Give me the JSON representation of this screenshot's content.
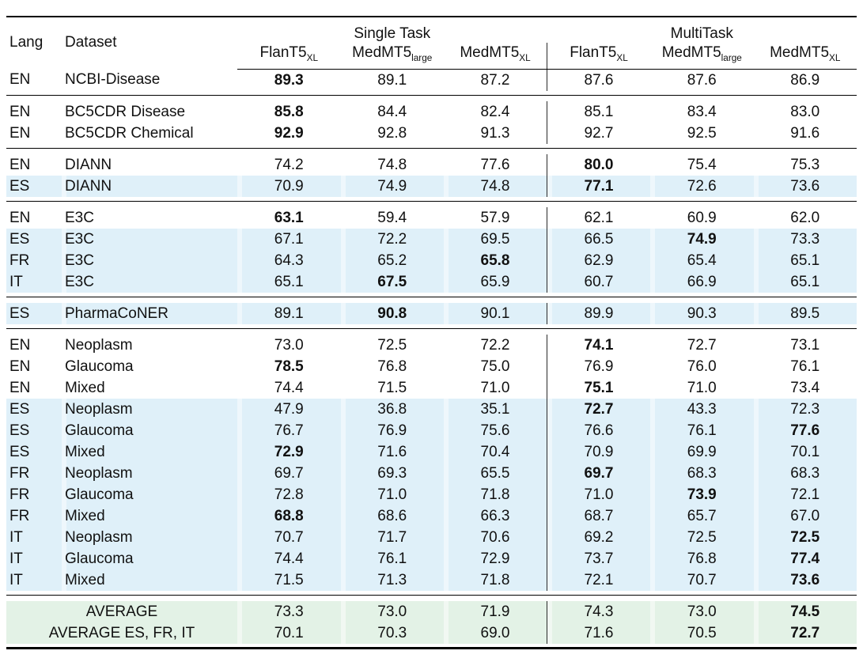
{
  "table": {
    "header": {
      "lang": "Lang",
      "dataset": "Dataset",
      "groups": [
        {
          "label": "Single Task",
          "models": [
            {
              "name": "FlanT5",
              "sub": "XL"
            },
            {
              "name": "MedMT5",
              "sub": "large"
            },
            {
              "name": "MedMT5",
              "sub": "XL"
            }
          ]
        },
        {
          "label": "MultiTask",
          "models": [
            {
              "name": "FlanT5",
              "sub": "XL"
            },
            {
              "name": "MedMT5",
              "sub": "large"
            },
            {
              "name": "MedMT5",
              "sub": "XL"
            }
          ]
        }
      ]
    },
    "groups": [
      {
        "rows": [
          {
            "lang": "EN",
            "dataset": "NCBI-Disease",
            "shaded": false,
            "values": [
              "89.3",
              "89.1",
              "87.2",
              "87.6",
              "87.6",
              "86.9"
            ],
            "bold": [
              0
            ]
          }
        ]
      },
      {
        "rows": [
          {
            "lang": "EN",
            "dataset": "BC5CDR Disease",
            "shaded": false,
            "values": [
              "85.8",
              "84.4",
              "82.4",
              "85.1",
              "83.4",
              "83.0"
            ],
            "bold": [
              0
            ]
          },
          {
            "lang": "EN",
            "dataset": "BC5CDR Chemical",
            "shaded": false,
            "values": [
              "92.9",
              "92.8",
              "91.3",
              "92.7",
              "92.5",
              "91.6"
            ],
            "bold": [
              0
            ]
          }
        ]
      },
      {
        "rows": [
          {
            "lang": "EN",
            "dataset": "DIANN",
            "shaded": false,
            "values": [
              "74.2",
              "74.8",
              "77.6",
              "80.0",
              "75.4",
              "75.3"
            ],
            "bold": [
              3
            ]
          },
          {
            "lang": "ES",
            "dataset": "DIANN",
            "shaded": true,
            "values": [
              "70.9",
              "74.9",
              "74.8",
              "77.1",
              "72.6",
              "73.6"
            ],
            "bold": [
              3
            ]
          }
        ]
      },
      {
        "rows": [
          {
            "lang": "EN",
            "dataset": "E3C",
            "shaded": false,
            "values": [
              "63.1",
              "59.4",
              "57.9",
              "62.1",
              "60.9",
              "62.0"
            ],
            "bold": [
              0
            ]
          },
          {
            "lang": "ES",
            "dataset": "E3C",
            "shaded": true,
            "values": [
              "67.1",
              "72.2",
              "69.5",
              "66.5",
              "74.9",
              "73.3"
            ],
            "bold": [
              4
            ]
          },
          {
            "lang": "FR",
            "dataset": "E3C",
            "shaded": true,
            "values": [
              "64.3",
              "65.2",
              "65.8",
              "62.9",
              "65.4",
              "65.1"
            ],
            "bold": [
              2
            ]
          },
          {
            "lang": "IT",
            "dataset": "E3C",
            "shaded": true,
            "values": [
              "65.1",
              "67.5",
              "65.9",
              "60.7",
              "66.9",
              "65.1"
            ],
            "bold": [
              1
            ]
          }
        ]
      },
      {
        "rows": [
          {
            "lang": "ES",
            "dataset": "PharmaCoNER",
            "shaded": true,
            "values": [
              "89.1",
              "90.8",
              "90.1",
              "89.9",
              "90.3",
              "89.5"
            ],
            "bold": [
              1
            ]
          }
        ]
      },
      {
        "rows": [
          {
            "lang": "EN",
            "dataset": "Neoplasm",
            "shaded": false,
            "values": [
              "73.0",
              "72.5",
              "72.2",
              "74.1",
              "72.7",
              "73.1"
            ],
            "bold": [
              3
            ]
          },
          {
            "lang": "EN",
            "dataset": "Glaucoma",
            "shaded": false,
            "values": [
              "78.5",
              "76.8",
              "75.0",
              "76.9",
              "76.0",
              "76.1"
            ],
            "bold": [
              0
            ]
          },
          {
            "lang": "EN",
            "dataset": "Mixed",
            "shaded": false,
            "values": [
              "74.4",
              "71.5",
              "71.0",
              "75.1",
              "71.0",
              "73.4"
            ],
            "bold": [
              3
            ]
          },
          {
            "lang": "ES",
            "dataset": "Neoplasm",
            "shaded": true,
            "values": [
              "47.9",
              "36.8",
              "35.1",
              "72.7",
              "43.3",
              "72.3"
            ],
            "bold": [
              3
            ]
          },
          {
            "lang": "ES",
            "dataset": "Glaucoma",
            "shaded": true,
            "values": [
              "76.7",
              "76.9",
              "75.6",
              "76.6",
              "76.1",
              "77.6"
            ],
            "bold": [
              5
            ]
          },
          {
            "lang": "ES",
            "dataset": "Mixed",
            "shaded": true,
            "values": [
              "72.9",
              "71.6",
              "70.4",
              "70.9",
              "69.9",
              "70.1"
            ],
            "bold": [
              0
            ]
          },
          {
            "lang": "FR",
            "dataset": "Neoplasm",
            "shaded": true,
            "values": [
              "69.7",
              "69.3",
              "65.5",
              "69.7",
              "68.3",
              "68.3"
            ],
            "bold": [
              3
            ]
          },
          {
            "lang": "FR",
            "dataset": "Glaucoma",
            "shaded": true,
            "values": [
              "72.8",
              "71.0",
              "71.8",
              "71.0",
              "73.9",
              "72.1"
            ],
            "bold": [
              4
            ]
          },
          {
            "lang": "FR",
            "dataset": "Mixed",
            "shaded": true,
            "values": [
              "68.8",
              "68.6",
              "66.3",
              "68.7",
              "65.7",
              "67.0"
            ],
            "bold": [
              0
            ]
          },
          {
            "lang": "IT",
            "dataset": "Neoplasm",
            "shaded": true,
            "values": [
              "70.7",
              "71.7",
              "70.6",
              "69.2",
              "72.5",
              "72.5"
            ],
            "bold": [
              5
            ]
          },
          {
            "lang": "IT",
            "dataset": "Glaucoma",
            "shaded": true,
            "values": [
              "74.4",
              "76.1",
              "72.9",
              "73.7",
              "76.8",
              "77.4"
            ],
            "bold": [
              5
            ]
          },
          {
            "lang": "IT",
            "dataset": "Mixed",
            "shaded": true,
            "values": [
              "71.5",
              "71.3",
              "71.8",
              "72.1",
              "70.7",
              "73.6"
            ],
            "bold": [
              5
            ]
          }
        ]
      }
    ],
    "footer": {
      "rows": [
        {
          "label": "AVERAGE",
          "values": [
            "73.3",
            "73.0",
            "71.9",
            "74.3",
            "73.0",
            "74.5"
          ],
          "bold": [
            5
          ]
        },
        {
          "label": "AVERAGE ES, FR, IT",
          "values": [
            "70.1",
            "70.3",
            "69.0",
            "71.6",
            "70.5",
            "72.7"
          ],
          "bold": [
            5
          ]
        }
      ]
    },
    "colors": {
      "shaded_row_blue": "#dff0f9",
      "shaded_gap_blue": "#eef7fc",
      "average_row_green": "#e3f2e6",
      "average_gap_green": "#f1f8f2",
      "rule_black": "#000000",
      "divider_gray": "#2a2a2a"
    }
  }
}
